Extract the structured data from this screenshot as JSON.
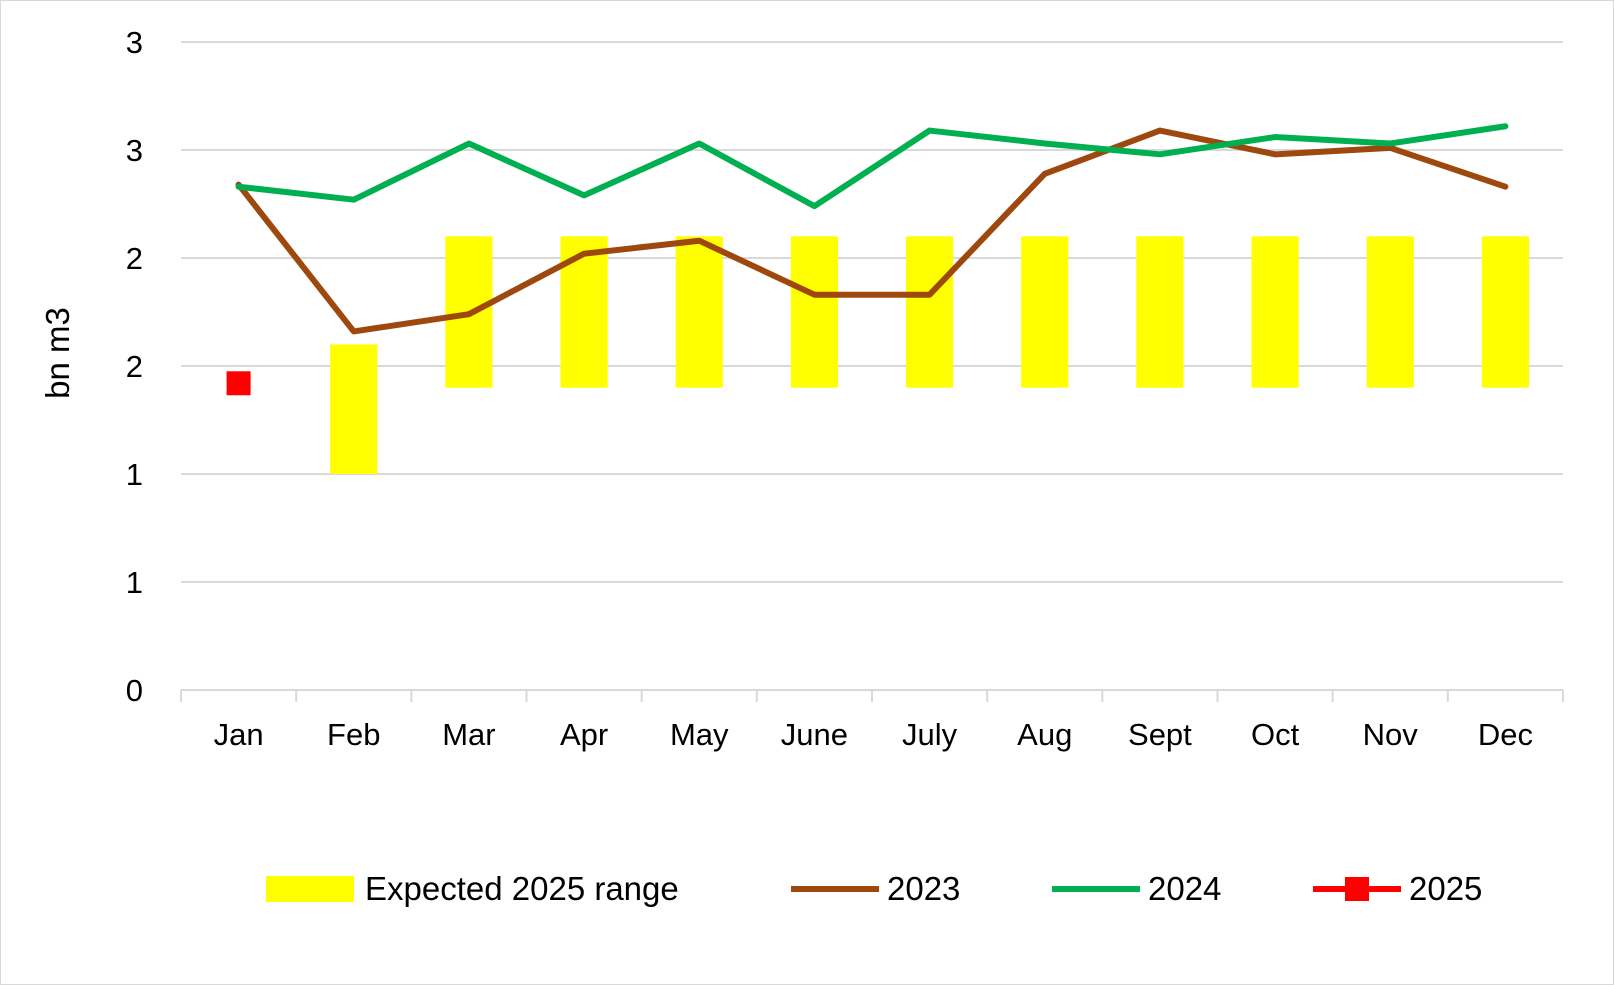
{
  "chart_data": {
    "type": "bar",
    "title": "",
    "xlabel": "",
    "ylabel": "bn m3",
    "categories": [
      "Jan",
      "Feb",
      "Mar",
      "Apr",
      "May",
      "June",
      "July",
      "Aug",
      "Sept",
      "Oct",
      "Nov",
      "Dec"
    ],
    "y_tick_values": [
      0,
      0.5,
      1.0,
      1.5,
      2.0,
      2.5,
      3.0
    ],
    "y_tick_labels": [
      "0",
      "1",
      "1",
      "2",
      "2",
      "3",
      "3"
    ],
    "ylim": [
      0,
      3.0
    ],
    "grid": true,
    "legend_position": "bottom",
    "range_series": {
      "name": "Expected 2025 range",
      "color": "#ffff00",
      "low": [
        null,
        1.0,
        1.4,
        1.4,
        1.4,
        1.4,
        1.4,
        1.4,
        1.4,
        1.4,
        1.4,
        1.4
      ],
      "high": [
        null,
        1.6,
        2.1,
        2.1,
        2.1,
        2.1,
        2.1,
        2.1,
        2.1,
        2.1,
        2.1,
        2.1
      ]
    },
    "series": [
      {
        "name": "2023",
        "type": "line",
        "color": "#9e480e",
        "values": [
          2.34,
          1.66,
          1.74,
          2.02,
          2.08,
          1.83,
          1.83,
          2.39,
          2.59,
          2.48,
          2.51,
          2.33
        ]
      },
      {
        "name": "2024",
        "type": "line",
        "color": "#00b050",
        "values": [
          2.33,
          2.27,
          2.53,
          2.29,
          2.53,
          2.24,
          2.59,
          2.53,
          2.48,
          2.56,
          2.53,
          2.61
        ]
      },
      {
        "name": "2025",
        "type": "marker",
        "color": "#ff0000",
        "values": [
          1.42,
          null,
          null,
          null,
          null,
          null,
          null,
          null,
          null,
          null,
          null,
          null
        ]
      }
    ]
  }
}
